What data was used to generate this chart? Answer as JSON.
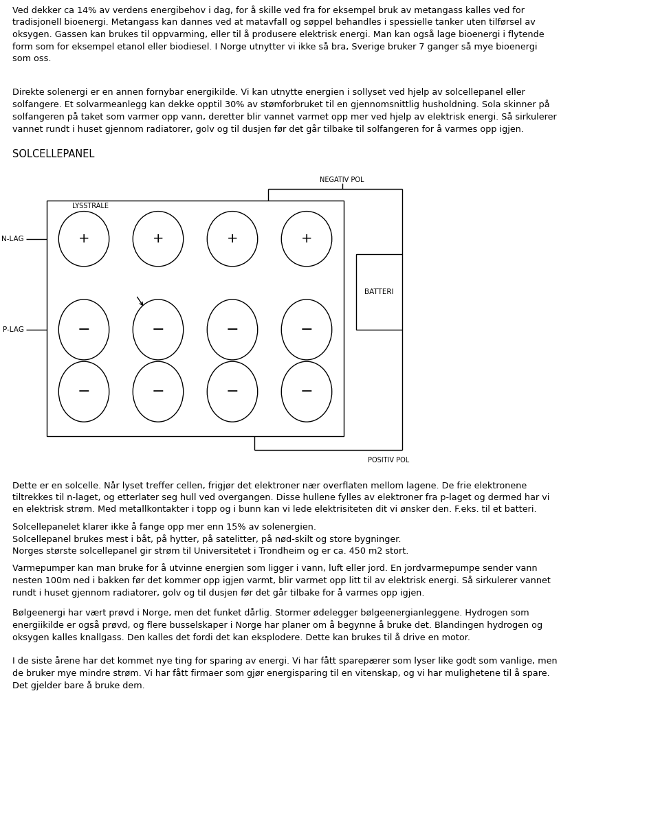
{
  "background_color": "#ffffff",
  "text_color": "#000000",
  "para1": "Ved dekker ca 14% av verdens energibehov i dag, for å skille ved fra for eksempel bruk av metangass kalles ved for\ntradisjonell bioenergi. Metangass kan dannes ved at matavfall og søppel behandles i spessielle tanker uten tilførsel av\noksygen. Gassen kan brukes til oppvarming, eller til å produsere elektrisk energi. Man kan også lage bioenergi i flytende\nform som for eksempel etanol eller biodiesel. I Norge utnytter vi ikke så bra, Sverige bruker 7 ganger så mye bioenergi\nsom oss.",
  "para2": "Direkte solenergi er en annen fornybar energikilde. Vi kan utnytte energien i sollyset ved hjelp av solcellepanel eller\nsolfangere. Et solvarmeanlegg kan dekke opptil 30% av stømforbruket til en gjennomsnittlig husholdning. Sola skinner på\nsolfangeren på taket som varmer opp vann, deretter blir vannet varmet opp mer ved hjelp av elektrisk energi. Så sirkulerer\nvannet rundt i huset gjennom radiatorer, golv og til dusjen før det går tilbake til solfangeren for å varmes opp igjen.",
  "heading": "SOLCELLEPANEL",
  "diag_label_lysstrale": "LYSSTRALE",
  "diag_label_negpol": "NEGATIV POL",
  "diag_label_pospol": "POSITIV POL",
  "diag_label_nlag": "N-LAG",
  "diag_label_plag": "P-LAG",
  "diag_label_batteri": "BATTERI",
  "bp1": "Dette er en solcelle. Når lyset treffer cellen, frigjør det elektroner nær overflaten mellom lagene. De frie elektronene\ntiltrekkes til n-laget, og etterlater seg hull ved overgangen. Disse hullene fylles av elektroner fra p-laget og dermed har vi\nen elektrisk strøm. Med metallkontakter i topp og i bunn kan vi lede elektrisiteten dit vi ønsker den. F.eks. til et batteri.",
  "bp2": "Solcellepanelet klarer ikke å fange opp mer enn 15% av solenergien.\nSolcellepanel brukes mest i båt, på hytter, på satelitter, på nød-skilt og store bygninger.\nNorges største solcellepanel gir strøm til Universitetet i Trondheim og er ca. 450 m2 stort.",
  "bp3": "Varmepumper kan man bruke for å utvinne energien som ligger i vann, luft eller jord. En jordvarmepumpe sender vann\nnesten 100m ned i bakken før det kommer opp igjen varmt, blir varmet opp litt til av elektrisk energi. Så sirkulerer vannet\nrundt i huset gjennom radiatorer, golv og til dusjen før det går tilbake for å varmes opp igjen.",
  "bp4": "Bølgeenergi har vært prøvd i Norge, men det funket dårlig. Stormer ødelegger bølgeenergianleggene. Hydrogen som\nenergiikilde er også prøvd, og flere busselskaper i Norge har planer om å begynne å bruke det. Blandingen hydrogen og\noksygen kalles knallgass. Den kalles det fordi det kan eksplodere. Dette kan brukes til å drive en motor.",
  "bp5": "I de siste årene har det kommet nye ting for sparing av energi. Vi har fått sparepærer som lyser like godt som vanlige, men\nde bruker mye mindre strøm. Vi har fått firmaer som gjør energisparing til en vitenskap, og vi har mulighetene til å spare.\nDet gjelder bare å bruke dem."
}
